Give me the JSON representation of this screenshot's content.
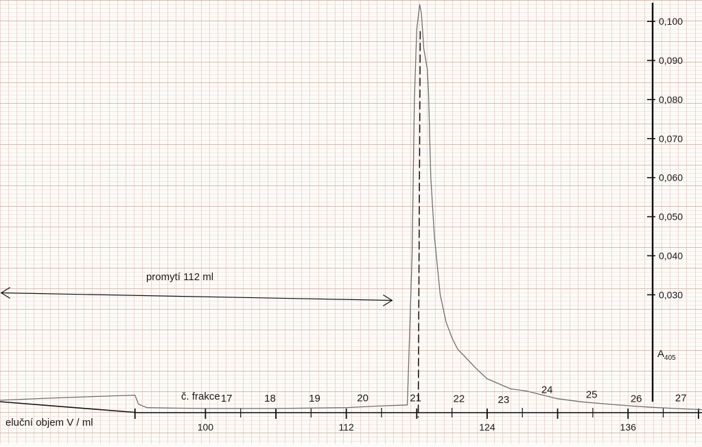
{
  "chart_data": {
    "type": "line",
    "title": "",
    "xlabel": "eluční objem V / ml",
    "ylabel": "A405",
    "ylabel_main": "A",
    "ylabel_sub": "405",
    "grid": true,
    "colors": {
      "paper": "#fdfbf8",
      "grid_minor": "#ead6cf",
      "grid_major": "#d6bcb3",
      "trace": "#6f6f6f",
      "axis": "#111111"
    },
    "xlim": [
      82.5,
      142.3
    ],
    "ylim": [
      0.0,
      0.1046
    ],
    "x_ticks": [
      {
        "value": 94,
        "label": ""
      },
      {
        "value": 100,
        "label": "100"
      },
      {
        "value": 106,
        "label": ""
      },
      {
        "value": 112,
        "label": "112"
      },
      {
        "value": 118,
        "label": ""
      },
      {
        "value": 124,
        "label": "124"
      },
      {
        "value": 130,
        "label": ""
      },
      {
        "value": 136,
        "label": "136"
      },
      {
        "value": 142,
        "label": ""
      }
    ],
    "x_minor_ticks": [
      103,
      109,
      115,
      121,
      127,
      133,
      139
    ],
    "y_ticks": [
      {
        "value": 0.03,
        "label": "0,030"
      },
      {
        "value": 0.04,
        "label": "0,040"
      },
      {
        "value": 0.05,
        "label": "0,050"
      },
      {
        "value": 0.06,
        "label": "0,060"
      },
      {
        "value": 0.07,
        "label": "0,070"
      },
      {
        "value": 0.08,
        "label": "0,080"
      },
      {
        "value": 0.09,
        "label": "0,090"
      },
      {
        "value": 0.1,
        "label": "0,100"
      }
    ],
    "fractions_label": "č. frakce",
    "fractions": [
      {
        "label": "17",
        "x": 101.8,
        "y": 0.0035
      },
      {
        "label": "18",
        "x": 105.5,
        "y": 0.0035
      },
      {
        "label": "19",
        "x": 109.3,
        "y": 0.0035
      },
      {
        "label": "20",
        "x": 113.4,
        "y": 0.0036
      },
      {
        "label": "21",
        "x": 117.9,
        "y": 0.0036
      },
      {
        "label": "22",
        "x": 121.6,
        "y": 0.0034
      },
      {
        "label": "23",
        "x": 125.4,
        "y": 0.0032
      },
      {
        "label": "24",
        "x": 129.1,
        "y": 0.0057
      },
      {
        "label": "25",
        "x": 132.9,
        "y": 0.0045
      },
      {
        "label": "26",
        "x": 136.7,
        "y": 0.0034
      },
      {
        "label": "27",
        "x": 140.5,
        "y": 0.0036
      }
    ],
    "fraction_dividers": [
      103,
      109,
      115,
      121,
      127,
      133,
      139
    ],
    "promyti": {
      "label": "promytí 112 ml",
      "x_start": 82.6,
      "x_end": 115.9,
      "y": 0.0298
    },
    "collection_marker_x": 118.3,
    "series": [
      {
        "x": [
          82.5,
          88.0,
          94.0,
          94.3,
          95.0,
          97.0,
          100.0,
          103.0,
          106.0,
          109.0,
          112.0,
          114.5,
          117.2,
          117.6,
          117.8,
          118.0,
          118.25,
          118.4,
          118.6,
          118.9,
          119.0,
          119.2,
          119.5,
          120.0,
          120.5,
          121.0,
          121.5,
          122.0,
          123.0,
          124.0,
          126.0,
          127.3,
          128.5,
          130.0,
          132.0,
          134.0,
          136.0,
          138.0,
          140.0,
          142.3
        ],
        "y": [
          0.003,
          0.0037,
          0.0043,
          0.002,
          0.0011,
          0.001,
          0.0009,
          0.0009,
          0.0009,
          0.001,
          0.0011,
          0.0015,
          0.0018,
          0.04,
          0.08,
          0.098,
          0.1043,
          0.102,
          0.093,
          0.0878,
          0.082,
          0.06,
          0.045,
          0.03,
          0.023,
          0.019,
          0.016,
          0.0145,
          0.0113,
          0.0085,
          0.0059,
          0.0054,
          0.0045,
          0.0034,
          0.0026,
          0.0021,
          0.0016,
          0.0012,
          0.0009,
          0.0006
        ]
      }
    ]
  }
}
